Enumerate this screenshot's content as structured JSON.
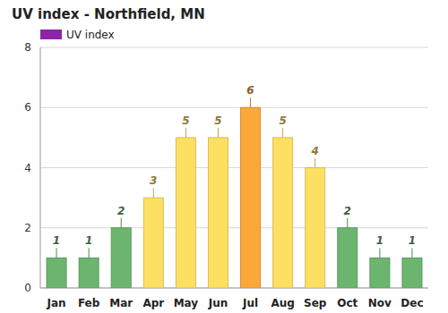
{
  "chart_data": {
    "type": "bar",
    "title": "UV index - Northfield, MN",
    "categories": [
      "Jan",
      "Feb",
      "Mar",
      "Apr",
      "May",
      "Jun",
      "Jul",
      "Aug",
      "Sep",
      "Oct",
      "Nov",
      "Dec"
    ],
    "series": [
      {
        "name": "UV index",
        "color": "#8e24aa",
        "values": [
          1,
          1,
          2,
          3,
          5,
          5,
          6,
          5,
          4,
          2,
          1,
          1
        ],
        "colors": [
          "#6bb56f",
          "#6bb56f",
          "#6bb56f",
          "#fde062",
          "#fde062",
          "#fde062",
          "#fca73a",
          "#fde062",
          "#fde062",
          "#6bb56f",
          "#6bb56f",
          "#6bb56f"
        ]
      }
    ],
    "ylim": [
      0,
      8
    ],
    "yticks": [
      0,
      2,
      4,
      6,
      8
    ],
    "grid": true,
    "legend": "top-left",
    "data_labels": true
  }
}
